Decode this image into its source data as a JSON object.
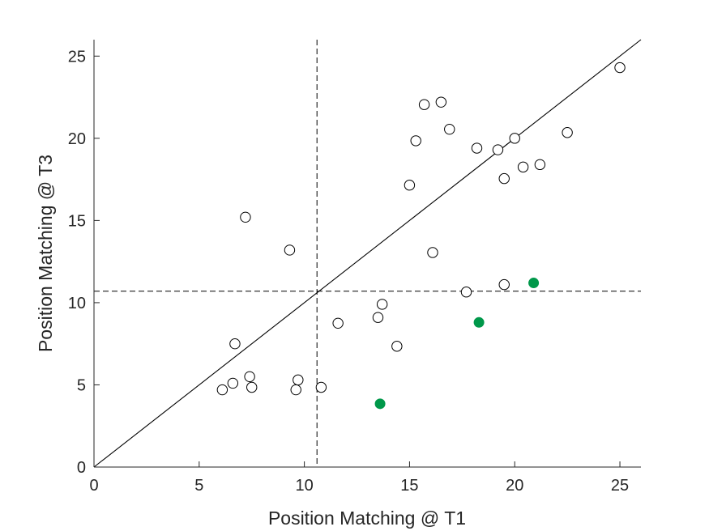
{
  "chart_data": {
    "type": "scatter",
    "title": "",
    "xlabel": "Position Matching @ T1",
    "ylabel": "Position Matching @ T3",
    "xlim": [
      0,
      26
    ],
    "ylim": [
      0,
      26
    ],
    "xticks": [
      "0",
      "5",
      "10",
      "15",
      "20",
      "25"
    ],
    "yticks": [
      "0",
      "5",
      "10",
      "15",
      "20",
      "25"
    ],
    "grid": false,
    "reference_lines": {
      "identity": "y = x",
      "vertical_dashed_x": 10.6,
      "horizontal_dashed_y": 10.7
    },
    "series": [
      {
        "marker": "open-circle",
        "color": "#000000",
        "points": [
          [
            6.1,
            4.7
          ],
          [
            6.6,
            5.1
          ],
          [
            6.7,
            7.5
          ],
          [
            7.2,
            15.2
          ],
          [
            7.4,
            5.5
          ],
          [
            7.5,
            4.85
          ],
          [
            9.3,
            13.2
          ],
          [
            9.6,
            4.7
          ],
          [
            9.7,
            5.3
          ],
          [
            10.8,
            4.85
          ],
          [
            11.6,
            8.75
          ],
          [
            13.5,
            9.1
          ],
          [
            13.7,
            9.9
          ],
          [
            14.4,
            7.35
          ],
          [
            15.0,
            17.15
          ],
          [
            15.3,
            19.85
          ],
          [
            15.7,
            22.05
          ],
          [
            16.1,
            13.05
          ],
          [
            16.5,
            22.2
          ],
          [
            16.9,
            20.55
          ],
          [
            17.7,
            10.65
          ],
          [
            18.2,
            19.4
          ],
          [
            19.2,
            19.3
          ],
          [
            19.5,
            17.55
          ],
          [
            19.5,
            11.1
          ],
          [
            20.0,
            20.0
          ],
          [
            20.4,
            18.25
          ],
          [
            21.2,
            18.4
          ],
          [
            22.5,
            20.35
          ],
          [
            25.0,
            24.3
          ]
        ]
      },
      {
        "marker": "filled-circle",
        "color": "#00984A",
        "points": [
          [
            13.6,
            3.85
          ],
          [
            18.3,
            8.8
          ],
          [
            20.9,
            11.2
          ]
        ]
      }
    ]
  }
}
